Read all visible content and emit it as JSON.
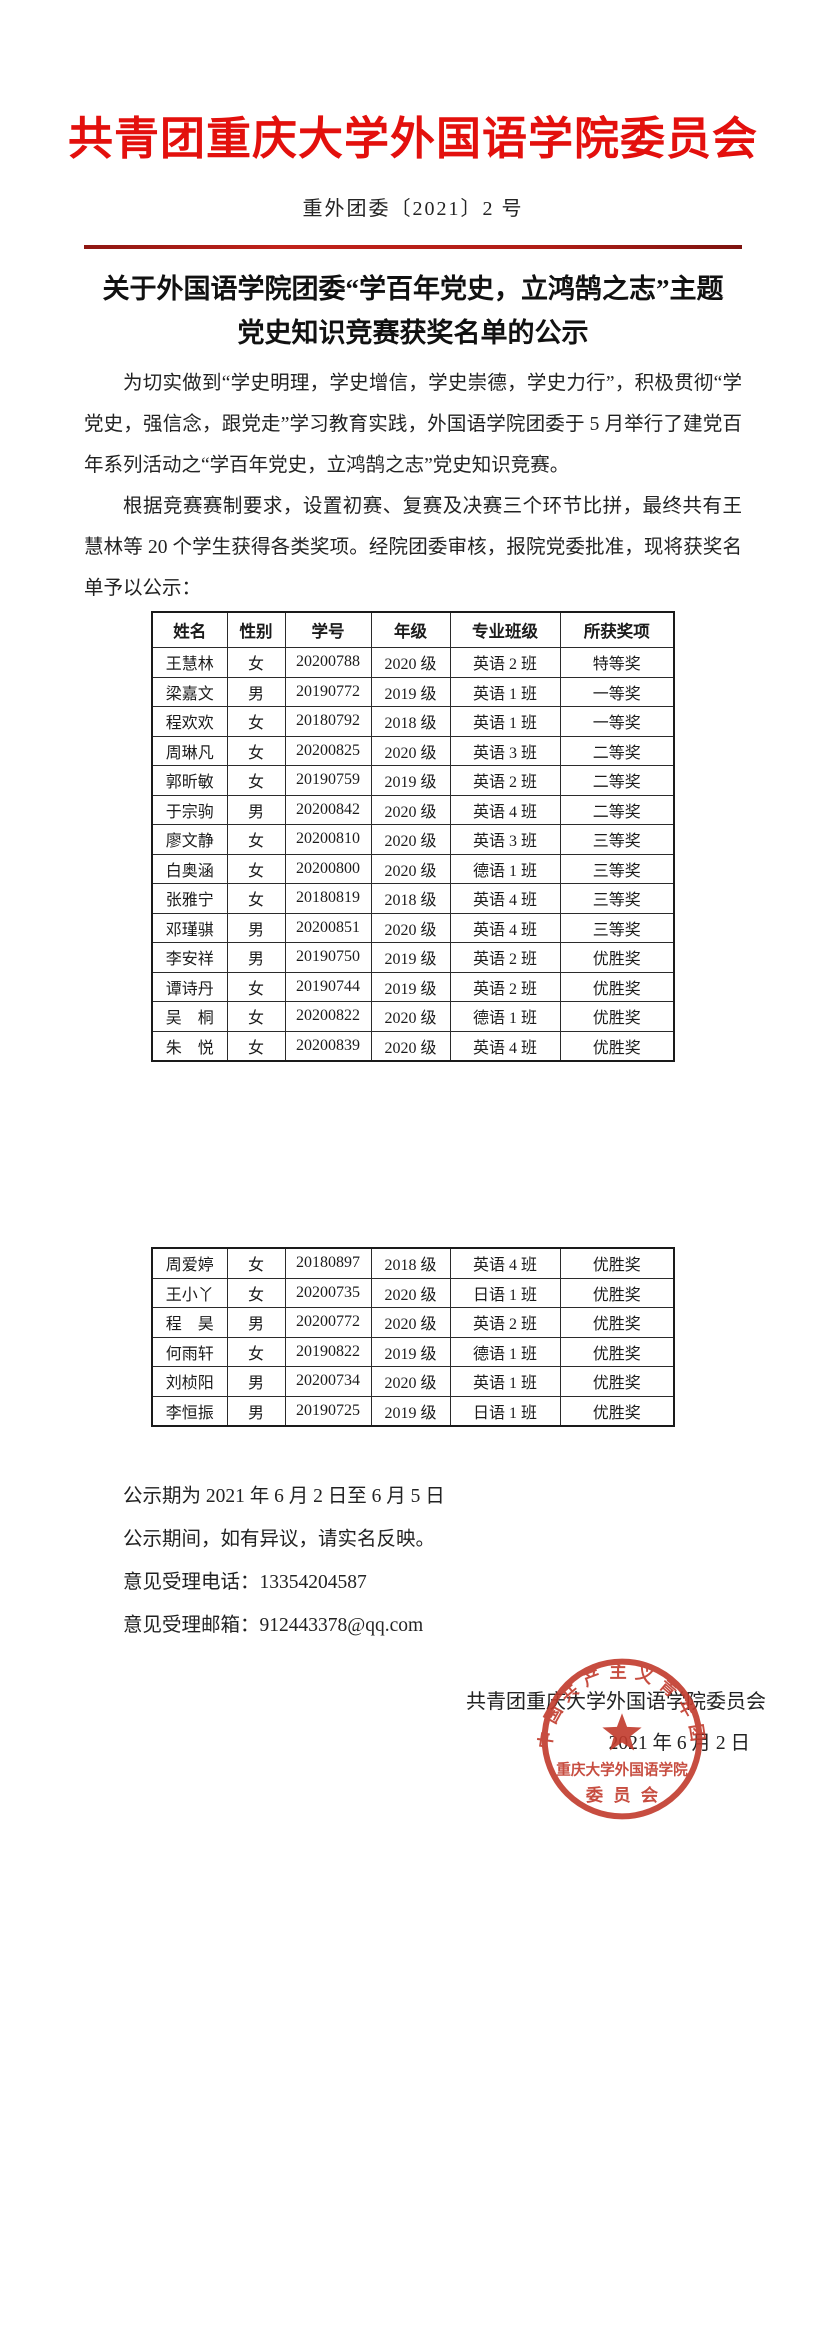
{
  "header": {
    "org_title": "共青团重庆大学外国语学院委员会",
    "doc_number": "重外团委〔2021〕2 号"
  },
  "title": {
    "line1": "关于外国语学院团委“学百年党史，立鸿鹄之志”主题",
    "line2": "党史知识竞赛获奖名单的公示"
  },
  "paragraphs": [
    "为切实做到“学史明理，学史增信，学史崇德，学史力行”，积极贯彻“学党史，强信念，跟党走”学习教育实践，外国语学院团委于 5 月举行了建党百年系列活动之“学百年党史，立鸿鹄之志”党史知识竞赛。",
    "根据竞赛赛制要求，设置初赛、复赛及决赛三个环节比拼，最终共有王慧林等 20 个学生获得各类奖项。经院团委审核，报院党委批准，现将获奖名单予以公示："
  ],
  "awards_table": {
    "headers": [
      "姓名",
      "性别",
      "学号",
      "年级",
      "专业班级",
      "所获奖项"
    ],
    "rows_page1": [
      [
        "王慧林",
        "女",
        "20200788",
        "2020 级",
        "英语 2 班",
        "特等奖"
      ],
      [
        "梁嘉文",
        "男",
        "20190772",
        "2019 级",
        "英语 1 班",
        "一等奖"
      ],
      [
        "程欢欢",
        "女",
        "20180792",
        "2018 级",
        "英语 1 班",
        "一等奖"
      ],
      [
        "周琳凡",
        "女",
        "20200825",
        "2020 级",
        "英语 3 班",
        "二等奖"
      ],
      [
        "郭昕敏",
        "女",
        "20190759",
        "2019 级",
        "英语 2 班",
        "二等奖"
      ],
      [
        "于宗驹",
        "男",
        "20200842",
        "2020 级",
        "英语 4 班",
        "二等奖"
      ],
      [
        "廖文静",
        "女",
        "20200810",
        "2020 级",
        "英语 3 班",
        "三等奖"
      ],
      [
        "白奥涵",
        "女",
        "20200800",
        "2020 级",
        "德语 1 班",
        "三等奖"
      ],
      [
        "张雅宁",
        "女",
        "20180819",
        "2018 级",
        "英语 4 班",
        "三等奖"
      ],
      [
        "邓瑾骐",
        "男",
        "20200851",
        "2020 级",
        "英语 4 班",
        "三等奖"
      ],
      [
        "李安祥",
        "男",
        "20190750",
        "2019 级",
        "英语 2 班",
        "优胜奖"
      ],
      [
        "谭诗丹",
        "女",
        "20190744",
        "2019 级",
        "英语 2 班",
        "优胜奖"
      ],
      [
        "吴　桐",
        "女",
        "20200822",
        "2020 级",
        "德语 1 班",
        "优胜奖"
      ],
      [
        "朱　悦",
        "女",
        "20200839",
        "2020 级",
        "英语 4 班",
        "优胜奖"
      ]
    ],
    "rows_page2": [
      [
        "周爱婷",
        "女",
        "20180897",
        "2018 级",
        "英语 4 班",
        "优胜奖"
      ],
      [
        "王小丫",
        "女",
        "20200735",
        "2020 级",
        "日语 1 班",
        "优胜奖"
      ],
      [
        "程　昊",
        "男",
        "20200772",
        "2020 级",
        "英语 2 班",
        "优胜奖"
      ],
      [
        "何雨轩",
        "女",
        "20190822",
        "2019 级",
        "德语 1 班",
        "优胜奖"
      ],
      [
        "刘桢阳",
        "男",
        "20200734",
        "2020 级",
        "英语 1 班",
        "优胜奖"
      ],
      [
        "李恒振",
        "男",
        "20190725",
        "2019 级",
        "日语 1 班",
        "优胜奖"
      ]
    ]
  },
  "footer": {
    "lines": [
      "公示期为 2021 年 6 月 2 日至 6 月 5 日",
      "公示期间，如有异议，请实名反映。",
      "意见受理电话：13354204587",
      "意见受理邮箱：912443378@qq.com"
    ],
    "signature": "共青团重庆大学外国语学院委员会",
    "date": "2021 年 6 月 2 日"
  },
  "seal": {
    "arc_text": "中国共产主义青年团",
    "line_text": "重庆大学外国语学院",
    "bottom_text": "委员会",
    "star_icon": "star-icon",
    "color": "#c13a2c"
  },
  "colors": {
    "org_title_red": "#e3100d",
    "rule_red": "#b01d16",
    "seal_red": "#c13a2c",
    "body_text": "#222222"
  }
}
